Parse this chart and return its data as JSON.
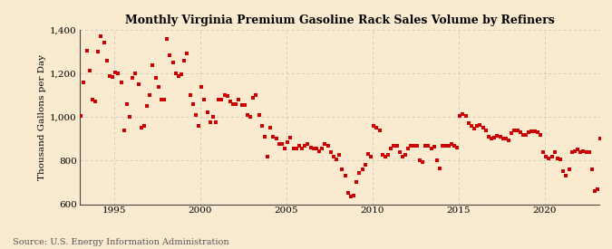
{
  "title": "Monthly Virginia Premium Gasoline Rack Sales Volume by Refiners",
  "ylabel": "Thousand Gallons per Day",
  "source": "Source: U.S. Energy Information Administration",
  "background_color": "#faebd0",
  "dot_color": "#cc0000",
  "ylim": [
    600,
    1400
  ],
  "yticks": [
    600,
    800,
    1000,
    1200,
    1400
  ],
  "ytick_labels": [
    "600",
    "800",
    "1,000",
    "1,200",
    "1,400"
  ],
  "xlim_start": 1993.0,
  "xlim_end": 2023.2,
  "xticks": [
    1995,
    2000,
    2005,
    2010,
    2015,
    2020
  ],
  "data": [
    [
      1993.08,
      1005
    ],
    [
      1993.25,
      1160
    ],
    [
      1993.42,
      1305
    ],
    [
      1993.58,
      1215
    ],
    [
      1993.75,
      1080
    ],
    [
      1993.92,
      1070
    ],
    [
      1994.08,
      1300
    ],
    [
      1994.25,
      1370
    ],
    [
      1994.42,
      1340
    ],
    [
      1994.58,
      1260
    ],
    [
      1994.75,
      1190
    ],
    [
      1994.92,
      1185
    ],
    [
      1995.08,
      1205
    ],
    [
      1995.25,
      1200
    ],
    [
      1995.42,
      1160
    ],
    [
      1995.58,
      940
    ],
    [
      1995.75,
      1060
    ],
    [
      1995.92,
      1000
    ],
    [
      1996.08,
      1180
    ],
    [
      1996.25,
      1200
    ],
    [
      1996.42,
      1150
    ],
    [
      1996.58,
      950
    ],
    [
      1996.75,
      960
    ],
    [
      1996.92,
      1050
    ],
    [
      1997.08,
      1100
    ],
    [
      1997.25,
      1240
    ],
    [
      1997.42,
      1180
    ],
    [
      1997.58,
      1140
    ],
    [
      1997.75,
      1080
    ],
    [
      1997.92,
      1080
    ],
    [
      1998.08,
      1360
    ],
    [
      1998.25,
      1285
    ],
    [
      1998.42,
      1250
    ],
    [
      1998.58,
      1200
    ],
    [
      1998.75,
      1190
    ],
    [
      1998.92,
      1195
    ],
    [
      1999.08,
      1260
    ],
    [
      1999.25,
      1290
    ],
    [
      1999.42,
      1100
    ],
    [
      1999.58,
      1060
    ],
    [
      1999.75,
      1010
    ],
    [
      1999.92,
      960
    ],
    [
      2000.08,
      1140
    ],
    [
      2000.25,
      1080
    ],
    [
      2000.42,
      1020
    ],
    [
      2000.58,
      975
    ],
    [
      2000.75,
      1000
    ],
    [
      2000.92,
      975
    ],
    [
      2001.08,
      1080
    ],
    [
      2001.25,
      1080
    ],
    [
      2001.42,
      1100
    ],
    [
      2001.58,
      1095
    ],
    [
      2001.75,
      1070
    ],
    [
      2001.92,
      1060
    ],
    [
      2002.08,
      1060
    ],
    [
      2002.25,
      1080
    ],
    [
      2002.42,
      1055
    ],
    [
      2002.58,
      1055
    ],
    [
      2002.75,
      1010
    ],
    [
      2002.92,
      1000
    ],
    [
      2003.08,
      1090
    ],
    [
      2003.25,
      1100
    ],
    [
      2003.42,
      1010
    ],
    [
      2003.58,
      960
    ],
    [
      2003.75,
      910
    ],
    [
      2003.92,
      820
    ],
    [
      2004.08,
      950
    ],
    [
      2004.25,
      910
    ],
    [
      2004.42,
      900
    ],
    [
      2004.58,
      875
    ],
    [
      2004.75,
      875
    ],
    [
      2004.92,
      855
    ],
    [
      2005.08,
      885
    ],
    [
      2005.25,
      905
    ],
    [
      2005.42,
      855
    ],
    [
      2005.58,
      855
    ],
    [
      2005.75,
      870
    ],
    [
      2005.92,
      855
    ],
    [
      2006.08,
      870
    ],
    [
      2006.25,
      875
    ],
    [
      2006.42,
      860
    ],
    [
      2006.58,
      855
    ],
    [
      2006.75,
      855
    ],
    [
      2006.92,
      845
    ],
    [
      2007.08,
      855
    ],
    [
      2007.25,
      875
    ],
    [
      2007.42,
      870
    ],
    [
      2007.58,
      840
    ],
    [
      2007.75,
      820
    ],
    [
      2007.92,
      805
    ],
    [
      2008.08,
      825
    ],
    [
      2008.25,
      760
    ],
    [
      2008.42,
      730
    ],
    [
      2008.58,
      650
    ],
    [
      2008.75,
      635
    ],
    [
      2008.92,
      640
    ],
    [
      2009.08,
      700
    ],
    [
      2009.25,
      745
    ],
    [
      2009.42,
      760
    ],
    [
      2009.58,
      780
    ],
    [
      2009.75,
      830
    ],
    [
      2009.92,
      820
    ],
    [
      2010.08,
      960
    ],
    [
      2010.25,
      950
    ],
    [
      2010.42,
      940
    ],
    [
      2010.58,
      825
    ],
    [
      2010.75,
      820
    ],
    [
      2010.92,
      825
    ],
    [
      2011.08,
      855
    ],
    [
      2011.25,
      870
    ],
    [
      2011.42,
      870
    ],
    [
      2011.58,
      840
    ],
    [
      2011.75,
      820
    ],
    [
      2011.92,
      825
    ],
    [
      2012.08,
      855
    ],
    [
      2012.25,
      870
    ],
    [
      2012.42,
      870
    ],
    [
      2012.58,
      870
    ],
    [
      2012.75,
      800
    ],
    [
      2012.92,
      795
    ],
    [
      2013.08,
      870
    ],
    [
      2013.25,
      870
    ],
    [
      2013.42,
      855
    ],
    [
      2013.58,
      865
    ],
    [
      2013.75,
      800
    ],
    [
      2013.92,
      765
    ],
    [
      2014.08,
      870
    ],
    [
      2014.25,
      870
    ],
    [
      2014.42,
      870
    ],
    [
      2014.58,
      875
    ],
    [
      2014.75,
      870
    ],
    [
      2014.92,
      860
    ],
    [
      2015.08,
      1005
    ],
    [
      2015.25,
      1015
    ],
    [
      2015.42,
      1005
    ],
    [
      2015.58,
      970
    ],
    [
      2015.75,
      960
    ],
    [
      2015.92,
      945
    ],
    [
      2016.08,
      960
    ],
    [
      2016.25,
      965
    ],
    [
      2016.42,
      950
    ],
    [
      2016.58,
      940
    ],
    [
      2016.75,
      910
    ],
    [
      2016.92,
      900
    ],
    [
      2017.08,
      905
    ],
    [
      2017.25,
      915
    ],
    [
      2017.42,
      910
    ],
    [
      2017.58,
      900
    ],
    [
      2017.75,
      900
    ],
    [
      2017.92,
      895
    ],
    [
      2018.08,
      925
    ],
    [
      2018.25,
      940
    ],
    [
      2018.42,
      940
    ],
    [
      2018.58,
      930
    ],
    [
      2018.75,
      920
    ],
    [
      2018.92,
      920
    ],
    [
      2019.08,
      930
    ],
    [
      2019.25,
      935
    ],
    [
      2019.42,
      935
    ],
    [
      2019.58,
      930
    ],
    [
      2019.75,
      920
    ],
    [
      2019.92,
      840
    ],
    [
      2020.08,
      820
    ],
    [
      2020.25,
      810
    ],
    [
      2020.42,
      820
    ],
    [
      2020.58,
      840
    ],
    [
      2020.75,
      810
    ],
    [
      2020.92,
      805
    ],
    [
      2021.08,
      750
    ],
    [
      2021.25,
      730
    ],
    [
      2021.42,
      760
    ],
    [
      2021.58,
      840
    ],
    [
      2021.75,
      845
    ],
    [
      2021.92,
      850
    ],
    [
      2022.08,
      840
    ],
    [
      2022.25,
      845
    ],
    [
      2022.42,
      840
    ],
    [
      2022.58,
      840
    ],
    [
      2022.75,
      760
    ],
    [
      2022.92,
      660
    ],
    [
      2023.08,
      670
    ],
    [
      2023.25,
      900
    ]
  ]
}
